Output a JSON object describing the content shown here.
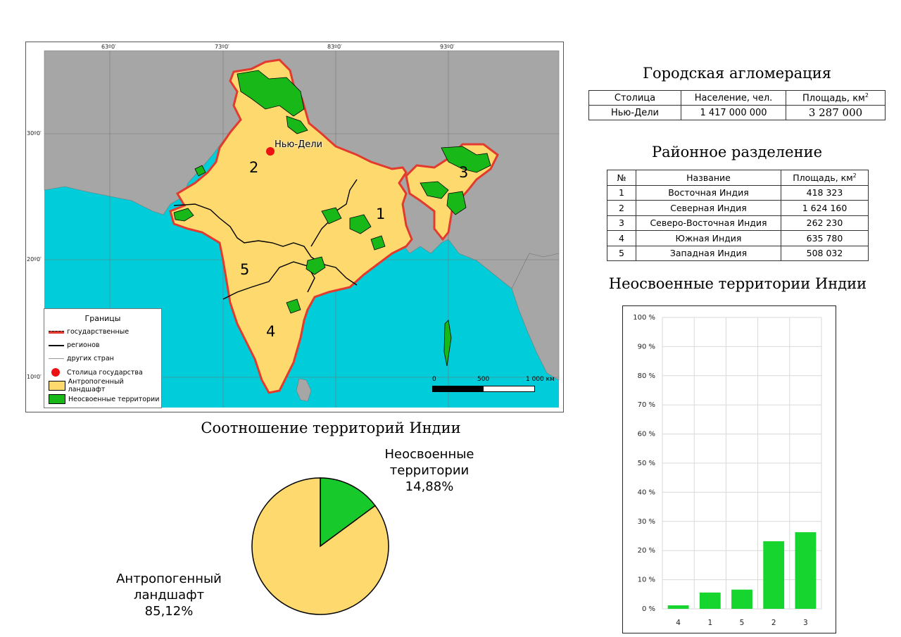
{
  "map": {
    "lon_labels": [
      "63º0′",
      "73º0′",
      "83º0′",
      "93º0′"
    ],
    "lat_labels": [
      "30º0′",
      "20º0′",
      "10º0′"
    ],
    "capital_label": "Нью-Дели",
    "region_numbers": [
      "1",
      "2",
      "3",
      "4",
      "5"
    ],
    "colors": {
      "sea": "#00cdd9",
      "other_land": "#a6a6a6",
      "anthropogenic": "#fdd96e",
      "undeveloped": "#17b817",
      "state_border": "#e23a2e",
      "capital": "#ee1111"
    },
    "legend": {
      "title": "Границы",
      "items": [
        "государственные",
        "регионов",
        "других стран",
        "Столица государства",
        "Антропогенный ландшафт",
        "Неосвоенные территории"
      ]
    },
    "scale": {
      "ticks": [
        "0",
        "500",
        "1 000 км"
      ]
    }
  },
  "agglomeration": {
    "title": "Городская агломерация",
    "headers": [
      "Столица",
      "Население, чел.",
      "Площадь, км"
    ],
    "area_unit_sup": "2",
    "row": [
      "Нью-Дели",
      "1 417 000 000",
      "3 287 000"
    ]
  },
  "regions": {
    "title": "Районное разделение",
    "headers": [
      "№",
      "Название",
      "Площадь, км"
    ],
    "area_unit_sup": "2",
    "rows": [
      [
        "1",
        "Восточная Индия",
        "418 323"
      ],
      [
        "2",
        "Северная Индия",
        "1 624 160"
      ],
      [
        "3",
        "Северо-Восточная Индия",
        "262 230"
      ],
      [
        "4",
        "Южная Индия",
        "635 780"
      ],
      [
        "5",
        "Западная Индия",
        "508 032"
      ]
    ]
  },
  "pie": {
    "title": "Соотношение территорий Индии",
    "undeveloped_label": [
      "Неосвоенные",
      "территории",
      "14,88%"
    ],
    "anthropogenic_label": [
      "Антропогенный",
      "ландшафт",
      "85,12%"
    ]
  },
  "bar": {
    "title": "Неосвоенные территории Индии"
  },
  "chart_data": [
    {
      "type": "pie",
      "title": "Соотношение территорий Индии",
      "categories": [
        "Неосвоенные территории",
        "Антропогенный ландшафт"
      ],
      "values": [
        14.88,
        85.12
      ],
      "colors": [
        "#17c92a",
        "#fdd96e"
      ]
    },
    {
      "type": "bar",
      "title": "Неосвоенные территории Индии",
      "categories": [
        "4",
        "1",
        "5",
        "2",
        "3"
      ],
      "values": [
        1.2,
        5.6,
        6.6,
        23.2,
        26.3
      ],
      "yticks": [
        "0 %",
        "10 %",
        "20 %",
        "30 %",
        "40 %",
        "50 %",
        "60 %",
        "70 %",
        "80 %",
        "90 %",
        "100 %"
      ],
      "ylim": [
        0,
        100
      ],
      "grid": true,
      "color": "#17d52f"
    }
  ]
}
